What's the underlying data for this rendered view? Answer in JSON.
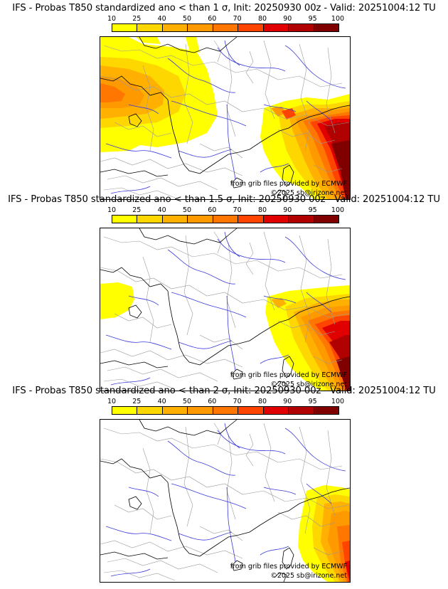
{
  "colors": {
    "c10": "#ffff00",
    "c25": "#ffd700",
    "c40": "#ffb000",
    "c50": "#ff9900",
    "c60": "#ff7700",
    "c70": "#ff4400",
    "c80": "#e00000",
    "c90": "#b00000",
    "c95": "#800000",
    "c100": "#4a0000"
  },
  "colorbar_ticks": [
    "10",
    "25",
    "40",
    "50",
    "60",
    "70",
    "80",
    "90",
    "95",
    "100"
  ],
  "attribution": {
    "source": "from grib files provided by ECMWF",
    "copyright": "©2025 sb@irizone.net"
  },
  "panels": [
    {
      "title": "IFS - Probas T850  standardized ano < than 1 σ, Init: 20250930 00z - Valid: 20251004:12 TU"
    },
    {
      "title": "IFS - Probas T850  standardized ano < than 1.5 σ, Init: 20250930 00z - Valid: 20251004:12 TU"
    },
    {
      "title": "IFS - Probas T850  standardized ano < than 2 σ, Init: 20250930 00z - Valid: 20251004:12 TU"
    }
  ]
}
